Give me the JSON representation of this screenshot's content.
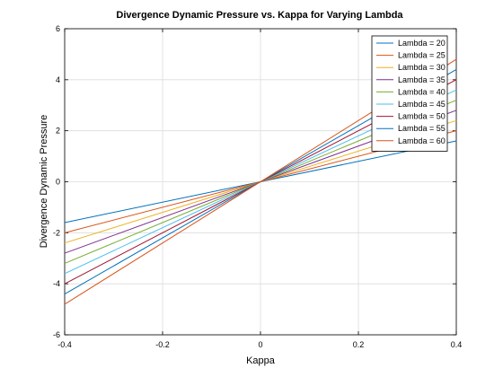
{
  "chart_data": {
    "type": "line",
    "title": "Divergence Dynamic Pressure vs. Kappa for Varying Lambda",
    "xlabel": "Kappa",
    "ylabel": "Divergence Dynamic Pressure",
    "xlim": [
      -0.4,
      0.4
    ],
    "ylim": [
      -6,
      6
    ],
    "xticks": [
      -0.4,
      -0.2,
      0,
      0.2,
      0.4
    ],
    "xtick_labels": [
      "-0.4",
      "-0.2",
      "0",
      "0.2",
      "0.4"
    ],
    "yticks": [
      -6,
      -4,
      -2,
      0,
      2,
      4,
      6
    ],
    "ytick_labels": [
      "-6",
      "-4",
      "-2",
      "0",
      "2",
      "4",
      "6"
    ],
    "grid": true,
    "legend_position": "top-right",
    "x": [
      -0.4,
      0.4
    ],
    "series": [
      {
        "name": "Lambda = 20",
        "color": "#0072BD",
        "values": [
          -1.6,
          1.6
        ]
      },
      {
        "name": "Lambda = 25",
        "color": "#D95319",
        "values": [
          -2.0,
          2.0
        ]
      },
      {
        "name": "Lambda = 30",
        "color": "#EDB120",
        "values": [
          -2.4,
          2.4
        ]
      },
      {
        "name": "Lambda = 35",
        "color": "#7E2F8E",
        "values": [
          -2.8,
          2.8
        ]
      },
      {
        "name": "Lambda = 40",
        "color": "#77AC30",
        "values": [
          -3.2,
          3.2
        ]
      },
      {
        "name": "Lambda = 45",
        "color": "#4DBEEE",
        "values": [
          -3.6,
          3.6
        ]
      },
      {
        "name": "Lambda = 50",
        "color": "#A2142F",
        "values": [
          -4.0,
          4.0
        ]
      },
      {
        "name": "Lambda = 55",
        "color": "#0072BD",
        "values": [
          -4.4,
          4.4
        ]
      },
      {
        "name": "Lambda = 60",
        "color": "#D95319",
        "values": [
          -4.8,
          4.8
        ]
      }
    ]
  }
}
